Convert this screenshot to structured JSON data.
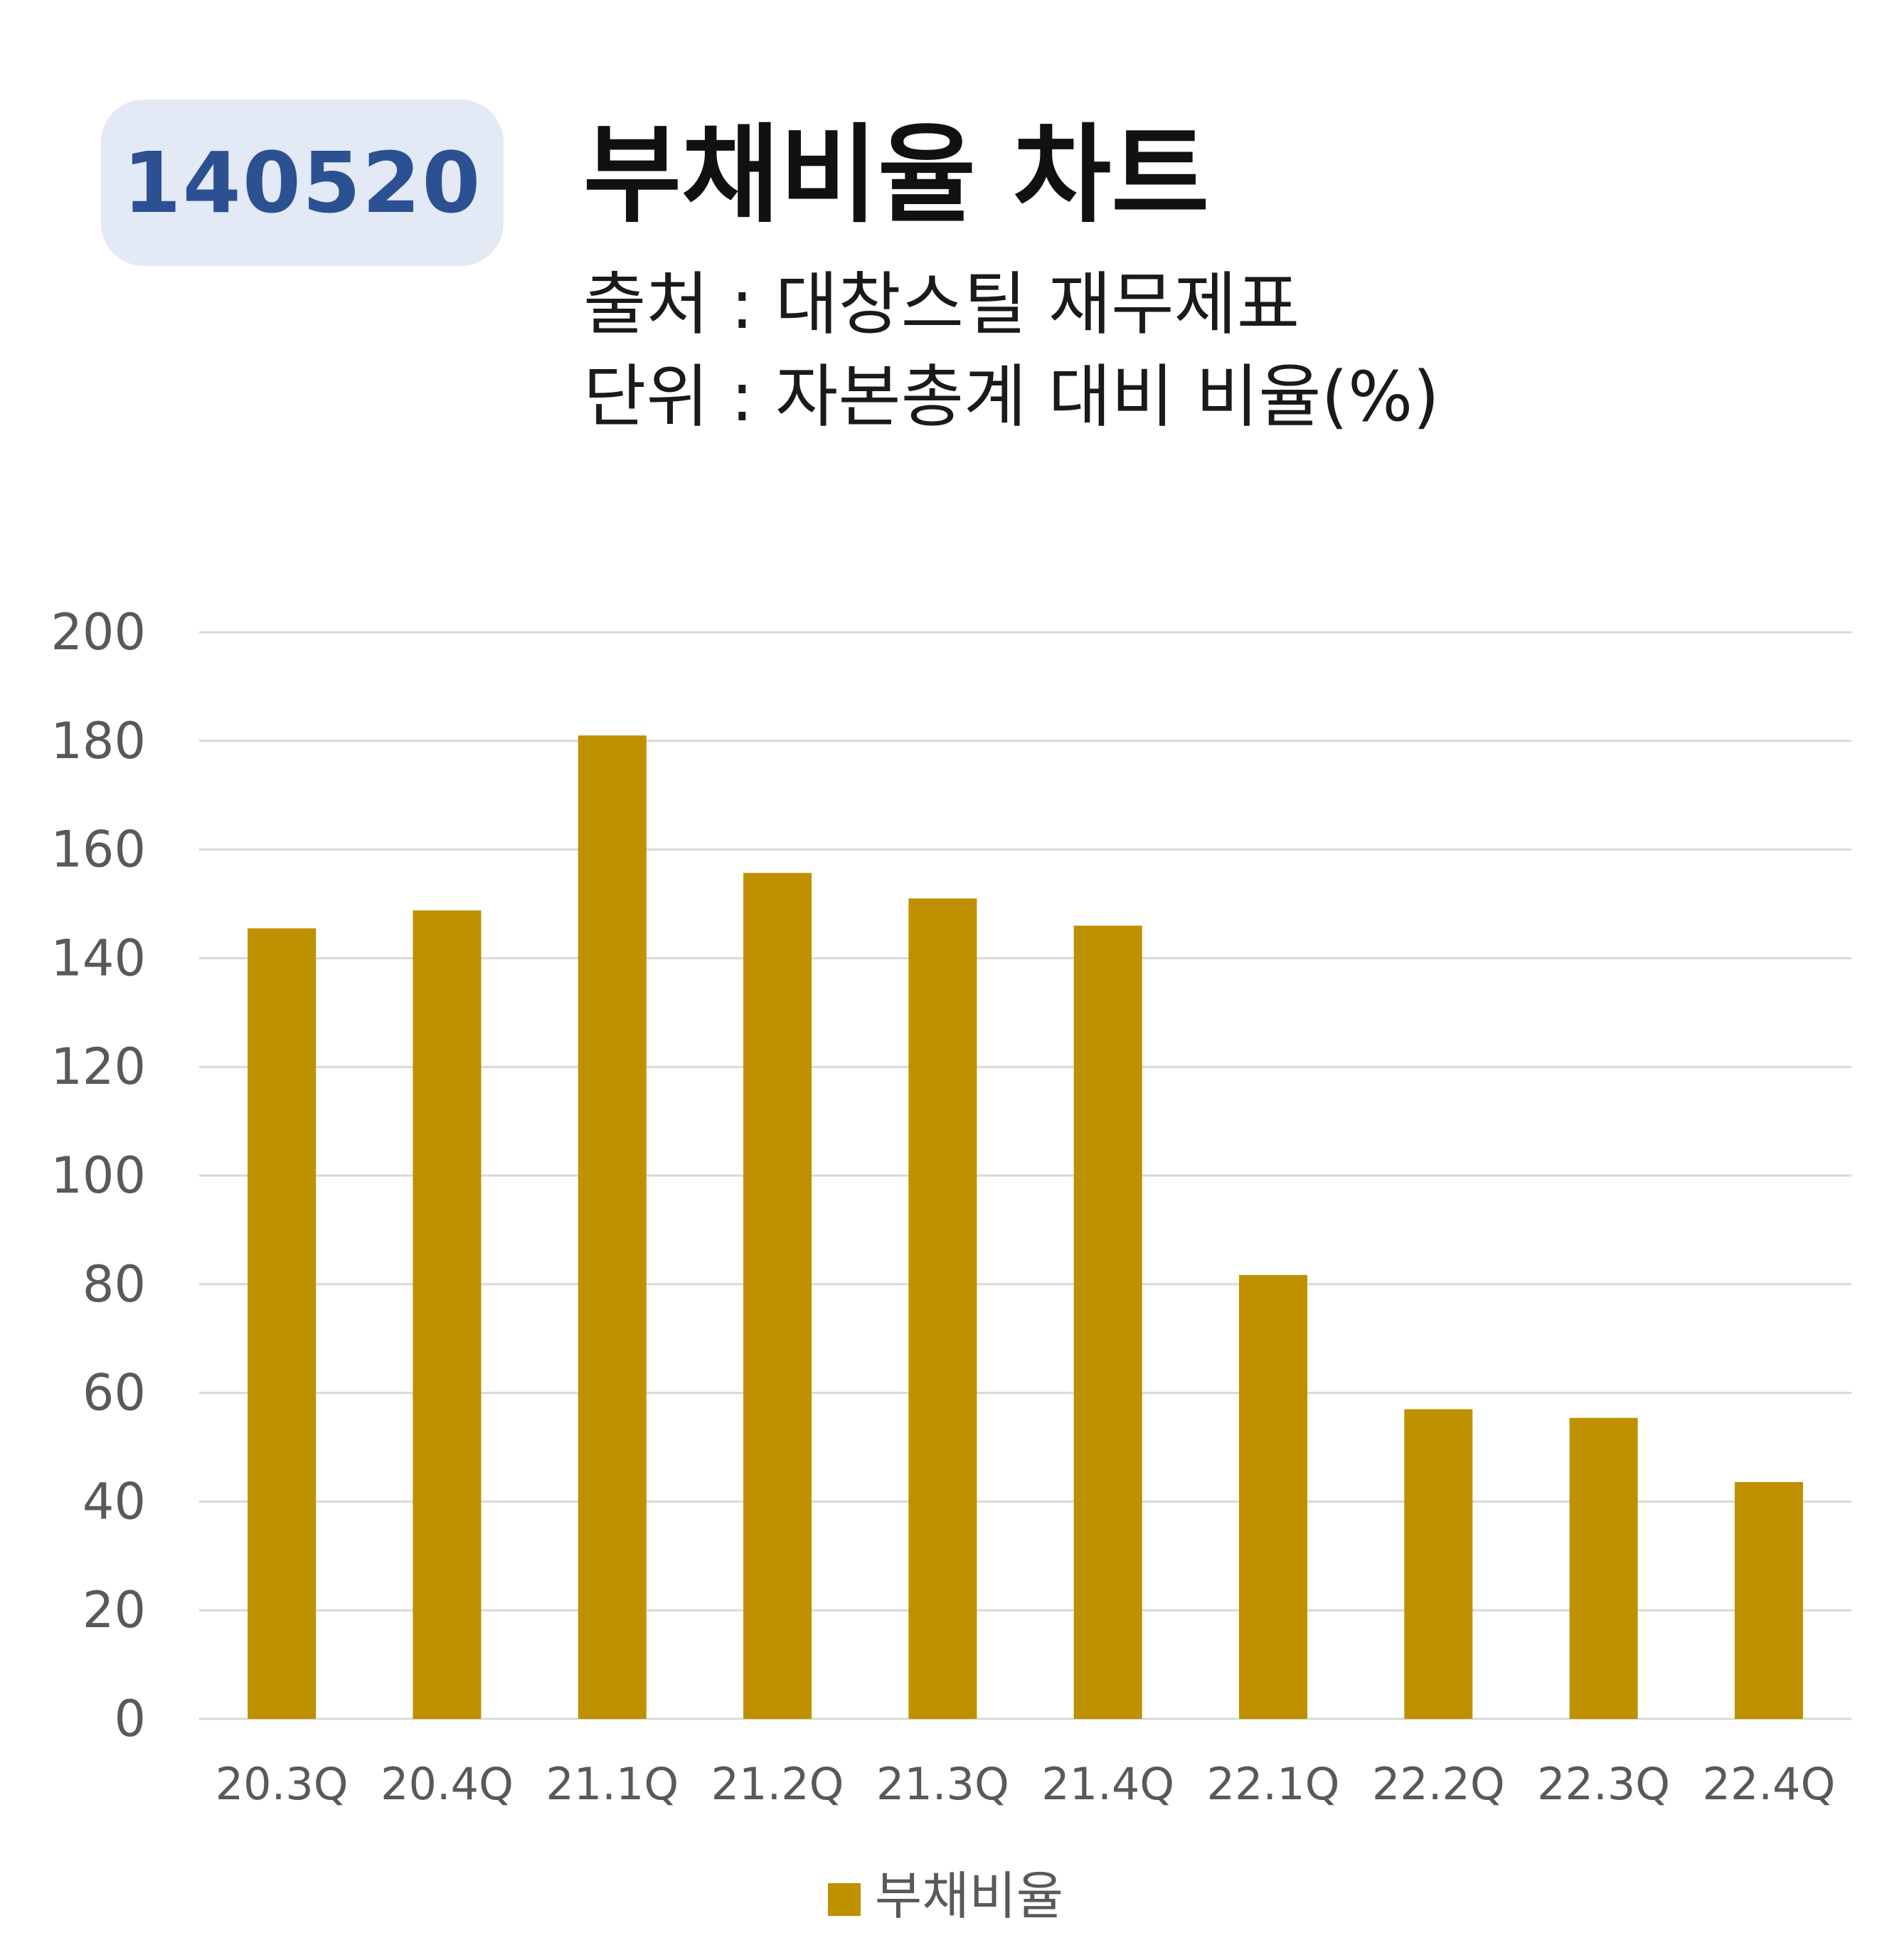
{
  "header": {
    "code": "140520",
    "title": "부채비율 차트",
    "source_line": "출처 : 대창스틸 재무제표",
    "unit_line": "단위 : 자본총계 대비 비율(%)"
  },
  "colors": {
    "bar": "#bf9000",
    "grid": "#d9d9d9",
    "tick_text": "#595959",
    "badge_bg": "#e3e9f5",
    "badge_text": "#2c5193"
  },
  "chart_data": {
    "type": "bar",
    "categories": [
      "20.3Q",
      "20.4Q",
      "21.1Q",
      "21.2Q",
      "21.3Q",
      "21.4Q",
      "22.1Q",
      "22.2Q",
      "22.3Q",
      "22.4Q"
    ],
    "series": [
      {
        "name": "부채비율",
        "values": [
          145.5,
          148.8,
          181.0,
          155.7,
          151.0,
          146.0,
          81.7,
          57.0,
          55.4,
          43.6
        ]
      }
    ],
    "ylim": [
      0,
      200
    ],
    "yticks": [
      "0",
      "20",
      "40",
      "60",
      "80",
      "100",
      "120",
      "140",
      "160",
      "180",
      "200"
    ],
    "grid": true,
    "legend_position": "bottom-center"
  }
}
